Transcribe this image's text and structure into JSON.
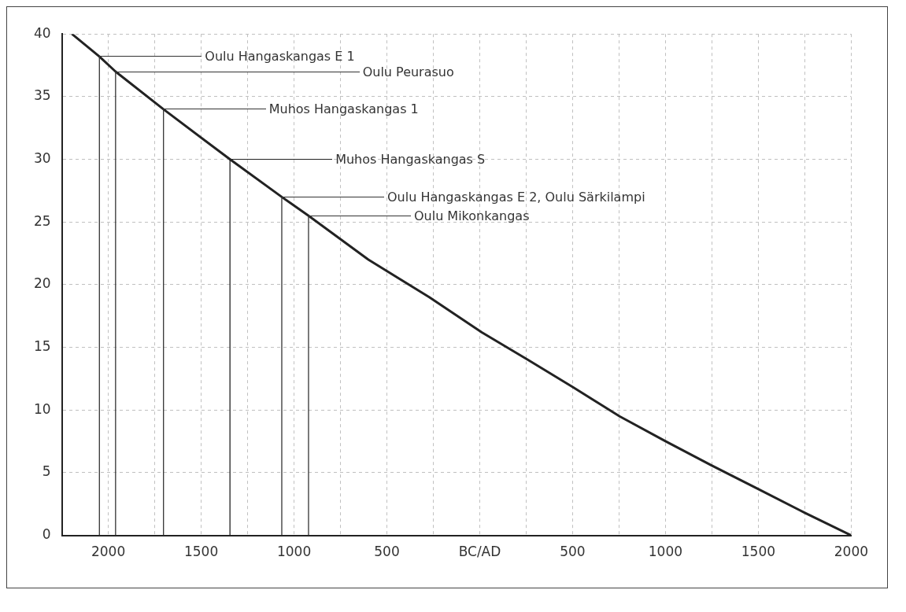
{
  "chart_data": {
    "type": "line",
    "x": [
      -2196,
      -2048,
      -1961,
      -1703,
      -1345,
      -1066,
      -922,
      -600,
      -272,
      11,
      260,
      504,
      753,
      1002,
      1246,
      1499,
      1750,
      2000
    ],
    "series": [
      {
        "color": "#222222",
        "values": [
          40,
          38.2,
          37,
          34,
          30,
          27,
          25.5,
          22,
          19,
          16.2,
          14,
          11.8,
          9.5,
          7.5,
          5.6,
          3.7,
          1.8,
          0
        ]
      }
    ],
    "xlim": [
      -2250,
      2000
    ],
    "xticks": [
      {
        "value": -2000,
        "label": "2000"
      },
      {
        "value": -1750,
        "label": null
      },
      {
        "value": -1500,
        "label": "1500"
      },
      {
        "value": -1250,
        "label": null
      },
      {
        "value": -1000,
        "label": "1000"
      },
      {
        "value": -750,
        "label": null
      },
      {
        "value": -500,
        "label": "500"
      },
      {
        "value": -250,
        "label": null
      },
      {
        "value": 0,
        "label": "BC/AD"
      },
      {
        "value": 250,
        "label": null
      },
      500,
      {
        "value": 750,
        "label": null
      },
      1000,
      {
        "value": 1250,
        "label": null
      },
      1500,
      {
        "value": 1750,
        "label": null
      },
      2000
    ],
    "ylim": [
      0,
      40
    ],
    "yticks": [
      0,
      5,
      10,
      15,
      20,
      25,
      30,
      35,
      40
    ],
    "grid": true,
    "legend": false,
    "marker": "none",
    "line_style": "solid",
    "ref_lines": [
      {
        "axis": "x",
        "value": -2048,
        "label": "Oulu Hangaskangas E 1",
        "color": "#333333"
      },
      {
        "axis": "x",
        "value": -1961,
        "label": "Oulu Peurasuo",
        "color": "#333333"
      },
      {
        "axis": "x",
        "value": -1703,
        "label": "Muhos Hangaskangas 1",
        "color": "#333333"
      },
      {
        "axis": "x",
        "value": -1345,
        "label": "Muhos Hangaskangas S",
        "color": "#222222"
      },
      {
        "axis": "x",
        "value": -1066,
        "label": "Oulu Hangaskangas E 2, Oulu Särkilampi",
        "color": "#333333"
      },
      {
        "axis": "x",
        "value": -922,
        "label": "Oulu Mikonkangas",
        "color": "#333333"
      }
    ]
  }
}
